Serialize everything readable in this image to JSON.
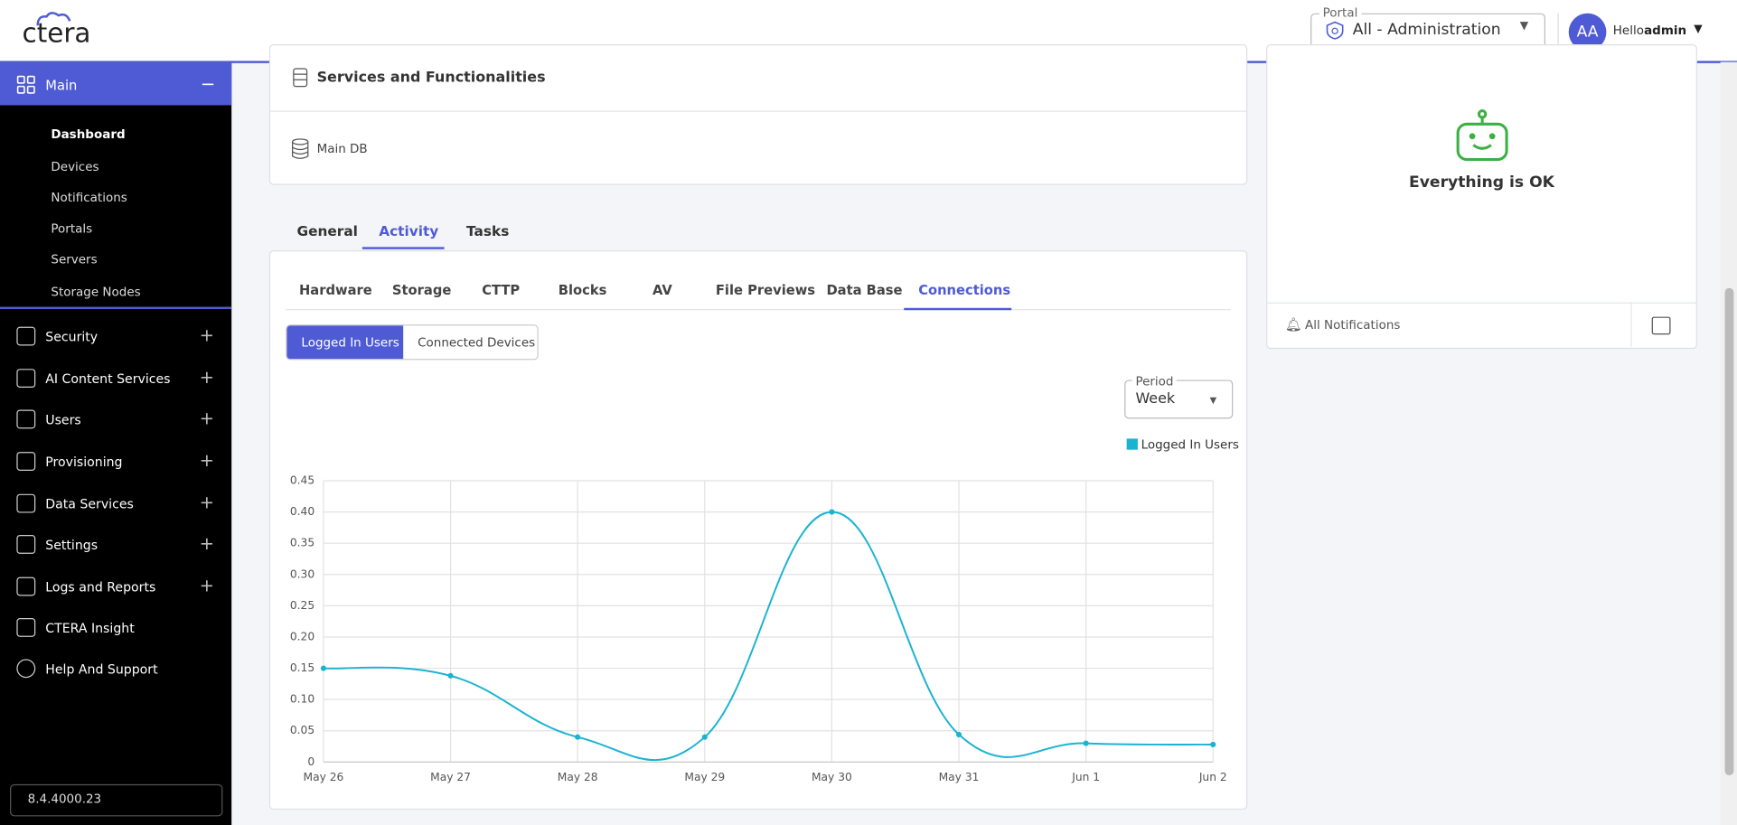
{
  "header": {
    "logo": "ctera",
    "portal_label": "Portal",
    "portal_value": "All - Administration",
    "avatar": "AA",
    "greeting": "Hello",
    "user": "admin"
  },
  "sidebar": {
    "main": "Main",
    "main_items": [
      "Dashboard",
      "Devices",
      "Notifications",
      "Portals",
      "Servers",
      "Storage Nodes"
    ],
    "sections": [
      "Security",
      "AI Content Services",
      "Users",
      "Provisioning",
      "Data Services",
      "Settings",
      "Logs and Reports",
      "CTERA Insight",
      "Help And Support"
    ],
    "version": "8.4.4000.23"
  },
  "services": {
    "title": "Services and Functionalities",
    "item": "Main DB"
  },
  "tabs": [
    "General",
    "Activity",
    "Tasks"
  ],
  "subtabs": [
    "Hardware",
    "Storage",
    "CTTP",
    "Blocks",
    "AV",
    "File Previews",
    "Data Base",
    "Connections"
  ],
  "toggle": [
    "Logged In Users",
    "Connected Devices"
  ],
  "period": {
    "label": "Period",
    "value": "Week"
  },
  "notifications": {
    "status": "Everything is OK",
    "link": "All Notifications"
  },
  "chart_data": {
    "type": "line",
    "categories": [
      "May 26",
      "May 27",
      "May 28",
      "May 29",
      "May 30",
      "May 31",
      "Jun 1",
      "Jun 2"
    ],
    "series": [
      {
        "name": "Logged In Users",
        "color": "#1ab4d0",
        "values": [
          0.15,
          0.138,
          0.04,
          0.04,
          0.4,
          0.044,
          0.03,
          0.028
        ]
      }
    ],
    "ylim": [
      0,
      0.45
    ],
    "yticks": [
      0,
      0.05,
      {
        "value": 0.1,
        "label": "0.10"
      },
      0.15,
      {
        "value": 0.2,
        "label": "0.20"
      },
      0.25,
      {
        "value": 0.3,
        "label": "0.30"
      },
      0.35,
      {
        "value": 0.4,
        "label": "0.40"
      },
      0.45
    ],
    "grid": true
  }
}
